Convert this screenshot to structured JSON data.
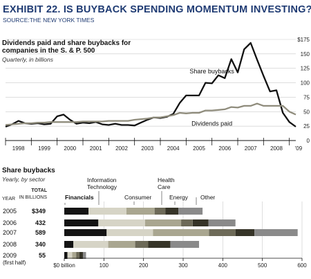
{
  "header": {
    "title": "EXHIBIT 22. IS BUYBACK SPENDING MOMENTUM INVESTING?",
    "source": "SOURCE:THE NEW YORK TIMES"
  },
  "chart_data": [
    {
      "type": "line",
      "title": "Dividends paid and share buybacks for companies in the S. & P. 500",
      "subtitle": "Quarterly, in billions",
      "x_ticks": [
        "1998",
        "1999",
        "2000",
        "2001",
        "2002",
        "2003",
        "2004",
        "2005",
        "2006",
        "2007",
        "2008",
        "'09"
      ],
      "y_ticks": [
        "$175",
        "150",
        "125",
        "100",
        "75",
        "50",
        "25",
        "0"
      ],
      "y_tick_values": [
        175,
        150,
        125,
        100,
        75,
        50,
        25,
        0
      ],
      "ylim": [
        0,
        175
      ],
      "xlim": [
        1998.0,
        2009.25
      ],
      "grid": "horizontal",
      "series": [
        {
          "name": "Share buybacks",
          "color": "#111111",
          "points": [
            [
              1998.0,
              24
            ],
            [
              1998.25,
              28
            ],
            [
              1998.5,
              34
            ],
            [
              1998.75,
              30
            ],
            [
              1999.0,
              29
            ],
            [
              1999.25,
              30
            ],
            [
              1999.5,
              28
            ],
            [
              1999.75,
              29
            ],
            [
              2000.0,
              42
            ],
            [
              2000.25,
              45
            ],
            [
              2000.5,
              36
            ],
            [
              2000.75,
              29
            ],
            [
              2001.0,
              31
            ],
            [
              2001.25,
              30
            ],
            [
              2001.5,
              32
            ],
            [
              2001.75,
              28
            ],
            [
              2002.0,
              27
            ],
            [
              2002.25,
              29
            ],
            [
              2002.5,
              27
            ],
            [
              2002.75,
              27
            ],
            [
              2003.0,
              26
            ],
            [
              2003.25,
              31
            ],
            [
              2003.5,
              36
            ],
            [
              2003.75,
              40
            ],
            [
              2004.0,
              39
            ],
            [
              2004.25,
              41
            ],
            [
              2004.5,
              46
            ],
            [
              2004.75,
              65
            ],
            [
              2005.0,
              78
            ],
            [
              2005.25,
              78
            ],
            [
              2005.5,
              78
            ],
            [
              2005.75,
              100
            ],
            [
              2006.0,
              99
            ],
            [
              2006.25,
              113
            ],
            [
              2006.5,
              108
            ],
            [
              2006.75,
              141
            ],
            [
              2007.0,
              118
            ],
            [
              2007.25,
              158
            ],
            [
              2007.5,
              169
            ],
            [
              2007.75,
              140
            ],
            [
              2008.0,
              112
            ],
            [
              2008.25,
              85
            ],
            [
              2008.5,
              87
            ],
            [
              2008.75,
              48
            ],
            [
              2009.0,
              32
            ],
            [
              2009.25,
              24
            ]
          ]
        },
        {
          "name": "Dividends paid",
          "color": "#8f8c7c",
          "points": [
            [
              1998.0,
              27
            ],
            [
              1998.25,
              28
            ],
            [
              1998.5,
              29
            ],
            [
              1998.75,
              30
            ],
            [
              1999.0,
              30
            ],
            [
              1999.25,
              31
            ],
            [
              1999.5,
              31
            ],
            [
              1999.75,
              32
            ],
            [
              2000.0,
              32
            ],
            [
              2000.25,
              32
            ],
            [
              2000.5,
              32
            ],
            [
              2000.75,
              32
            ],
            [
              2001.0,
              33
            ],
            [
              2001.25,
              33
            ],
            [
              2001.5,
              33
            ],
            [
              2001.75,
              33
            ],
            [
              2002.0,
              34
            ],
            [
              2002.25,
              34
            ],
            [
              2002.5,
              34
            ],
            [
              2002.75,
              34
            ],
            [
              2003.0,
              36
            ],
            [
              2003.25,
              37
            ],
            [
              2003.5,
              38
            ],
            [
              2003.75,
              40
            ],
            [
              2004.0,
              40
            ],
            [
              2004.25,
              42
            ],
            [
              2004.5,
              44
            ],
            [
              2004.75,
              48
            ],
            [
              2005.0,
              47
            ],
            [
              2005.25,
              48
            ],
            [
              2005.5,
              48
            ],
            [
              2005.75,
              52
            ],
            [
              2006.0,
              52
            ],
            [
              2006.25,
              53
            ],
            [
              2006.5,
              54
            ],
            [
              2006.75,
              58
            ],
            [
              2007.0,
              57
            ],
            [
              2007.25,
              60
            ],
            [
              2007.5,
              60
            ],
            [
              2007.75,
              64
            ],
            [
              2008.0,
              60
            ],
            [
              2008.25,
              60
            ],
            [
              2008.5,
              60
            ],
            [
              2008.75,
              60
            ],
            [
              2009.0,
              50
            ],
            [
              2009.25,
              45
            ]
          ]
        }
      ],
      "annotations": [
        {
          "text": "Share buybacks",
          "x": 2006.0,
          "y": 116
        },
        {
          "text": "Dividends paid",
          "x": 2006.0,
          "y": 26
        }
      ]
    },
    {
      "type": "bar",
      "stacked": true,
      "orientation": "horizontal",
      "title": "Share buybacks",
      "subtitle": "Yearly, by sector",
      "year_header": "YEAR",
      "total_header": [
        "TOTAL",
        "IN BILLIONS"
      ],
      "categories": [
        "2005",
        "2006",
        "2007",
        "2008",
        "2009"
      ],
      "category_notes": [
        "",
        "",
        "",
        "",
        "(first half)"
      ],
      "totals": [
        "$349",
        "432",
        "589",
        "340",
        "55"
      ],
      "xlim": [
        0,
        600
      ],
      "x_ticks": [
        "$0 billion",
        "100",
        "200",
        "300",
        "400",
        "500",
        "600"
      ],
      "x_tick_values": [
        0,
        100,
        200,
        300,
        400,
        500,
        600
      ],
      "series": [
        {
          "name": "Financials",
          "color": "#141414",
          "values": [
            61,
            86,
            107,
            23,
            8
          ]
        },
        {
          "name": "Information Technology",
          "color": "#d6d4c6",
          "values": [
            96,
            118,
            117,
            88,
            12
          ]
        },
        {
          "name": "Consumer",
          "color": "#a9a690",
          "values": [
            71,
            91,
            141,
            68,
            10
          ]
        },
        {
          "name": "Health Care",
          "color": "#6d6a58",
          "values": [
            27,
            29,
            67,
            33,
            8
          ]
        },
        {
          "name": "Energy",
          "color": "#363428",
          "values": [
            33,
            40,
            48,
            56,
            9
          ]
        },
        {
          "name": "Other",
          "color": "#8a8a8a",
          "values": [
            61,
            68,
            109,
            72,
            8
          ]
        }
      ]
    }
  ]
}
